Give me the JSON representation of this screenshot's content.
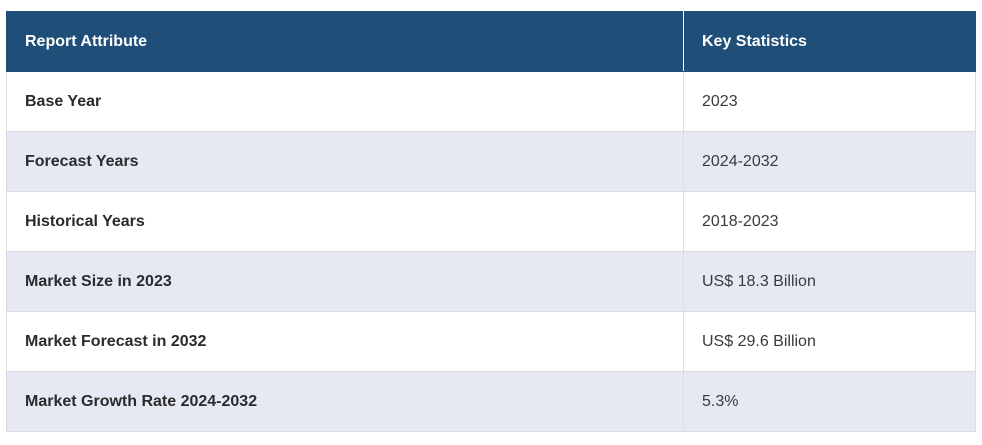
{
  "table": {
    "headers": {
      "attribute": "Report Attribute",
      "statistics": "Key Statistics"
    },
    "rows": [
      {
        "attribute": "Base Year",
        "value": "2023"
      },
      {
        "attribute": "Forecast Years",
        "value": "2024-2032"
      },
      {
        "attribute": "Historical Years",
        "value": "2018-2023"
      },
      {
        "attribute": "Market Size in 2023",
        "value": "US$ 18.3 Billion"
      },
      {
        "attribute": "Market Forecast in 2032",
        "value": "US$ 29.6 Billion"
      },
      {
        "attribute": "Market Growth Rate 2024-2032",
        "value": "5.3%"
      }
    ]
  },
  "colors": {
    "header_bg": "#1f4e79",
    "stripe_bg": "#e6e9f4"
  }
}
